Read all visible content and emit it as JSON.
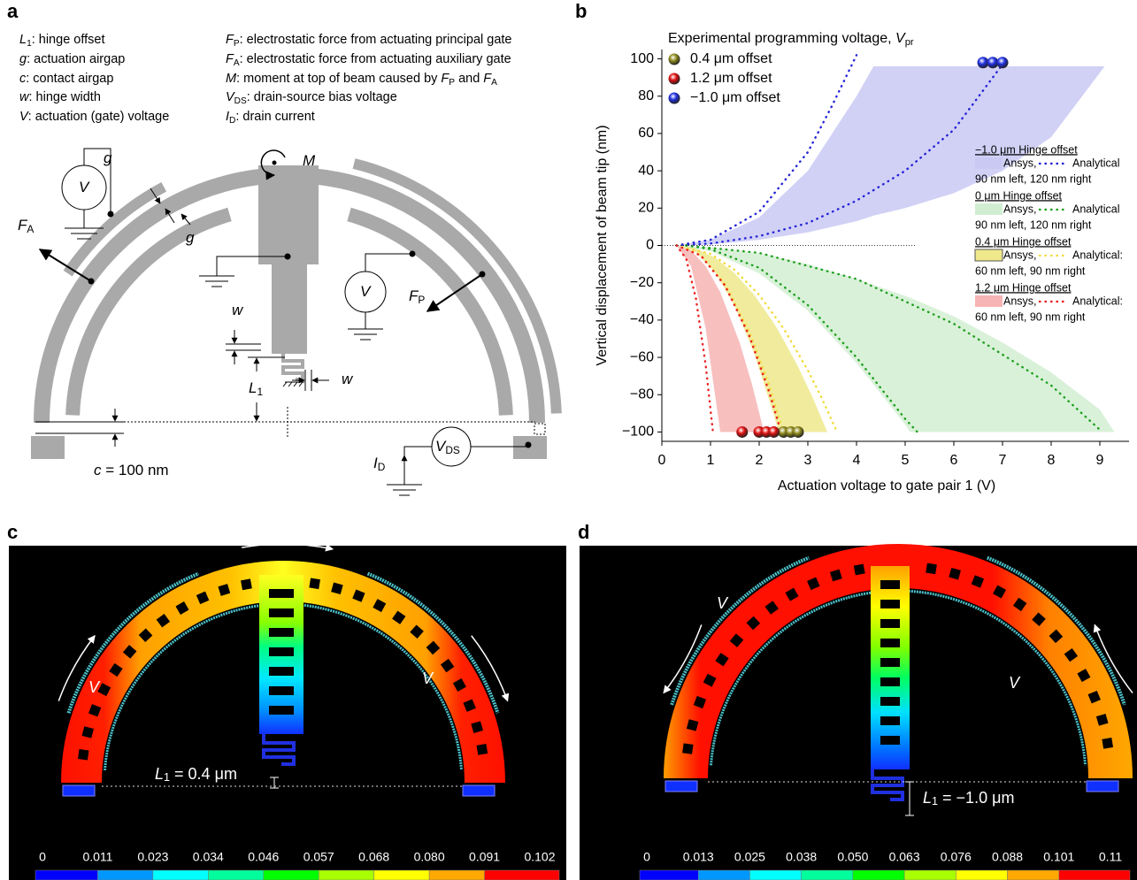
{
  "panel_a": {
    "label": "a",
    "legend": [
      [
        "L",
        "1",
        ": hinge offset"
      ],
      [
        "g",
        ": actuation airgap"
      ],
      [
        "c",
        ": contact airgap"
      ],
      [
        "w",
        ": hinge width"
      ],
      [
        "V",
        ": actuation (gate) voltage"
      ],
      [
        "F",
        "P",
        ": electrostatic force from actuating principal gate"
      ],
      [
        "F",
        "A",
        ": electrostatic force from actuating auxiliary gate"
      ],
      [
        "M",
        ": moment at top of beam caused by ",
        "F",
        "P",
        " and ",
        "F",
        "A"
      ],
      [
        "V",
        "DS",
        ": drain-source bias voltage"
      ],
      [
        "I",
        "D",
        ": drain current"
      ]
    ],
    "labels": [
      [
        "g"
      ],
      [
        "g"
      ],
      [
        "M"
      ],
      [
        "F",
        "A"
      ],
      [
        "F",
        "P"
      ],
      [
        "w"
      ],
      [
        "w"
      ],
      [
        "L",
        "1"
      ],
      [
        "c",
        " = 100 nm"
      ],
      [
        "V"
      ],
      [
        "V"
      ],
      [
        "V",
        "DS"
      ],
      [
        "I",
        "D"
      ]
    ]
  },
  "chart_data": {
    "type": "line",
    "label": "b",
    "title": [
      "Experimental programming voltage, ",
      "V",
      "pr"
    ],
    "xlabel": "Actuation voltage to gate pair 1 (V)",
    "ylabel": "Vertical displacement of beam tip (nm)",
    "xlim": [
      0,
      9.6
    ],
    "ylim": [
      -105,
      105
    ],
    "xticks": [
      0,
      1,
      2,
      3,
      4,
      5,
      6,
      7,
      8,
      9
    ],
    "yticks": [
      {
        "value": -100,
        "label": "−100"
      },
      {
        "value": -80,
        "label": "−80"
      },
      {
        "value": -60,
        "label": "−60"
      },
      {
        "value": -40,
        "label": "−40"
      },
      {
        "value": -20,
        "label": "−20"
      },
      0,
      20,
      40,
      60,
      80,
      100
    ],
    "hline": 0,
    "series": [
      {
        "name": "0.4 μm offset",
        "color": "#8f8a1c",
        "x": [
          2.5,
          2.65,
          2.8
        ],
        "values": [
          -100,
          -100,
          -100
        ]
      },
      {
        "name": "1.2 μm offset",
        "color": "#e01010",
        "x": [
          1.65,
          2.0,
          2.15,
          2.3
        ],
        "values": [
          -100,
          -100,
          -100,
          -100
        ]
      },
      {
        "name": "−1.0 μm offset",
        "color": "#1f2ee0",
        "x": [
          6.6,
          6.8,
          7.0
        ],
        "values": [
          98,
          98,
          98
        ]
      }
    ],
    "groups": [
      {
        "title": "−1.0 μm Hinge offset",
        "ansys": "Ansys,",
        "analytical": "Analytical",
        "note": "90 nm left, 120 nm right",
        "fill": "#c9c9f4",
        "color": "#2323d8",
        "band": {
          "x": [
            0.3,
            1,
            2,
            3,
            4,
            4.35,
            5,
            6,
            7,
            8,
            9.1
          ],
          "upper": [
            0,
            3,
            15,
            40,
            80,
            96,
            96,
            96,
            96,
            96,
            96
          ],
          "lower": [
            0,
            0.5,
            3,
            7,
            13,
            16,
            20,
            28,
            40,
            58,
            96
          ]
        },
        "curves": [
          {
            "x": [
              0.3,
              1,
              2,
              3,
              3.5,
              4.0
            ],
            "values": [
              0,
              3,
              18,
              50,
              75,
              102
            ]
          },
          {
            "x": [
              0.3,
              1,
              2,
              3,
              4,
              5,
              6,
              7.0
            ],
            "values": [
              0,
              1,
              5,
              12,
              24,
              40,
              62,
              97
            ]
          }
        ]
      },
      {
        "title": "0 μm Hinge offset",
        "ansys": "Ansys,",
        "analytical": "Analytical",
        "note": "90 nm left, 120 nm right",
        "fill": "#d2eed2",
        "color": "#1ea01e",
        "band": {
          "x": [
            0.3,
            1,
            2,
            3,
            4,
            5,
            5.1,
            6,
            7,
            8,
            9,
            9.3
          ],
          "upper": [
            0,
            -1,
            -4,
            -10,
            -18,
            -27,
            -28,
            -38,
            -52,
            -68,
            -88,
            -100
          ],
          "lower": [
            0,
            -3,
            -15,
            -35,
            -63,
            -96,
            -100,
            -100,
            -100,
            -100,
            -100,
            -100
          ]
        },
        "curves": [
          {
            "x": [
              0.5,
              1,
              2,
              3,
              4,
              5,
              5.25
            ],
            "values": [
              0,
              -2,
              -12,
              -32,
              -60,
              -93,
              -100
            ]
          },
          {
            "x": [
              0.5,
              2,
              4,
              6,
              8,
              9.05
            ],
            "values": [
              0,
              -4,
              -18,
              -42,
              -75,
              -100
            ]
          }
        ]
      },
      {
        "title": "0.4 μm Hinge offset",
        "ansys": "Ansys,",
        "analytical": "Analytical:",
        "note": "60 nm left, 90 nm right",
        "fill": "#efe98c",
        "color": "#f0dc3a",
        "band": {
          "x": [
            0.3,
            0.7,
            1.1,
            1.5,
            1.9,
            2.3,
            2.4,
            2.8,
            3.1,
            3.4
          ],
          "upper": [
            0,
            -1.7,
            -6.7,
            -15,
            -26.6,
            -41.6,
            -45.9,
            -65,
            -81.6,
            -100
          ],
          "lower": [
            0,
            -3.6,
            -14.5,
            -32.7,
            -58,
            -90.7,
            -100,
            -100,
            -100,
            -100
          ]
        },
        "curves": [
          {
            "x": [
              0.3,
              0.8,
              1.3,
              1.8,
              2.2,
              2.5
            ],
            "values": [
              0,
              -5.2,
              -20.7,
              -46.5,
              -74.6,
              -100
            ]
          },
          {
            "x": [
              0.3,
              1,
              1.5,
              2,
              2.5,
              3,
              3.3,
              3.6
            ],
            "values": [
              0,
              -4.5,
              -13.2,
              -26.5,
              -44.4,
              -66.9,
              -82.6,
              -100
            ]
          }
        ]
      },
      {
        "title": "1.2 μm Hinge offset",
        "ansys": "Ansys,",
        "analytical": "Analytical:",
        "note": "60 nm left, 90 nm right",
        "fill": "#f7b4b4",
        "color": "#ea2020",
        "band": {
          "x": [
            0.3,
            0.6,
            0.9,
            1.2,
            1.6,
            1.85,
            2.1
          ],
          "upper": [
            0,
            -2.8,
            -11.1,
            -25,
            -52.2,
            -74.2,
            -100
          ],
          "lower": [
            0,
            -11.1,
            -44.4,
            -100,
            -100,
            -100,
            -100
          ]
        },
        "curves": [
          {
            "x": [
              0.3,
              0.5,
              0.7,
              0.9,
              1.05
            ],
            "values": [
              0,
              -7.1,
              -28.4,
              -64,
              -100
            ]
          },
          {
            "x": [
              0.3,
              0.8,
              1.3,
              1.8,
              2.2,
              2.45
            ],
            "values": [
              0,
              -5.4,
              -21.6,
              -48.7,
              -78.1,
              -100
            ]
          }
        ]
      }
    ]
  },
  "panel_c": {
    "label": "c",
    "labels": [
      [
        "V"
      ],
      [
        "V"
      ],
      [
        "L",
        "1",
        " = 0.4 μm"
      ]
    ],
    "colorbar": [
      "0",
      "0.011",
      "0.023",
      "0.034",
      "0.046",
      "0.057",
      "0.068",
      "0.080",
      "0.091",
      "0.102"
    ],
    "colormap": [
      "#0000ff",
      "#0098ff",
      "#00ffff",
      "#00ff9c",
      "#00ff00",
      "#a8ff00",
      "#ffff00",
      "#ffa800",
      "#ff0000"
    ]
  },
  "panel_d": {
    "label": "d",
    "labels": [
      [
        "V"
      ],
      [
        "V"
      ],
      [
        "L",
        "1",
        " = −1.0 μm"
      ]
    ],
    "colorbar": [
      "0",
      "0.013",
      "0.025",
      "0.038",
      "0.050",
      "0.063",
      "0.076",
      "0.088",
      "0.101",
      "0.11"
    ],
    "colormap": [
      "#0000ff",
      "#0098ff",
      "#00ffff",
      "#00ff9c",
      "#00ff00",
      "#a8ff00",
      "#ffff00",
      "#ffa800",
      "#ff0000"
    ]
  }
}
